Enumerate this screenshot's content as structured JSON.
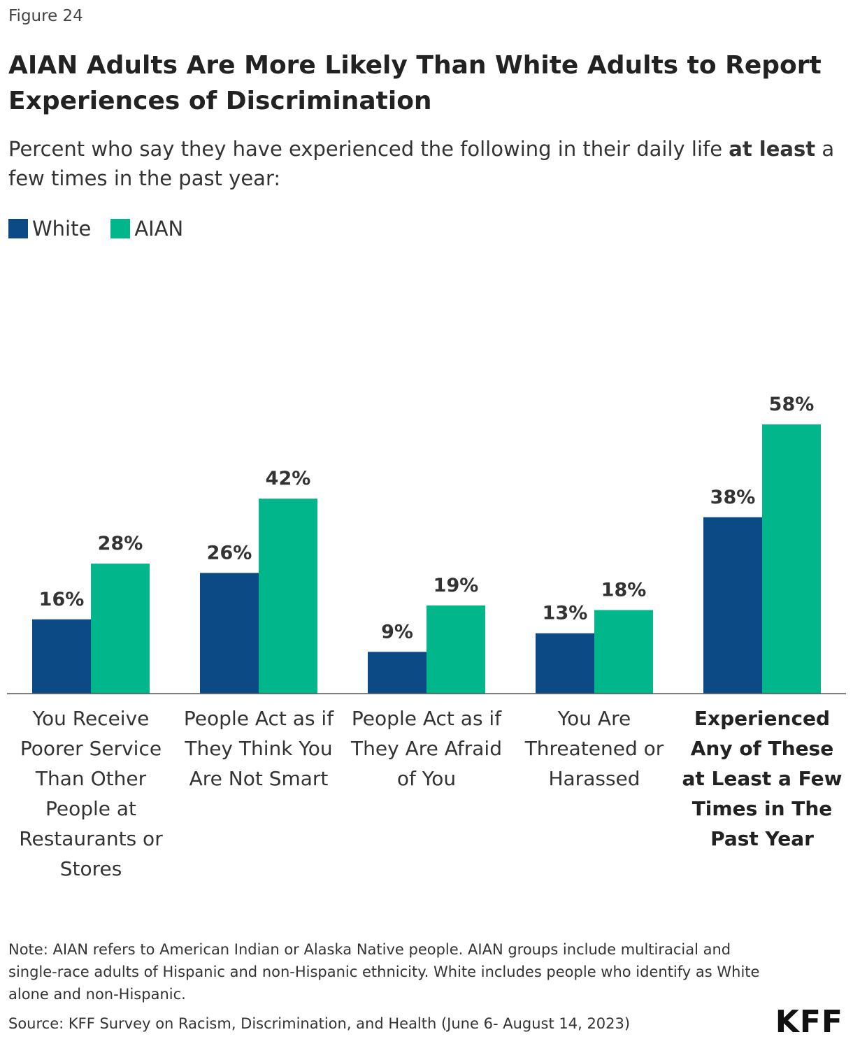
{
  "figure_label": "Figure 24",
  "chart_data": {
    "type": "bar",
    "title": "AIAN Adults Are More Likely Than White Adults to Report Experiences of Discrimination",
    "subtitle": [
      "Percent who say they have experienced the following in their daily life ",
      "at least",
      " a few times in the past year:"
    ],
    "categories": [
      "You Receive Poorer Service Than Other People at Restaurants or Stores",
      "People Act as if They Think You Are Not Smart",
      "People Act as if They Are Afraid of You",
      "You Are Threatened or Harassed",
      "Experienced Any of These at Least a Few Times in The Past Year"
    ],
    "series": [
      {
        "name": "White",
        "color": "#0b4a85",
        "values": [
          16,
          26,
          9,
          13,
          38
        ],
        "value_labels": [
          "16%",
          "26%",
          "9%",
          "13%",
          "38%"
        ]
      },
      {
        "name": "AIAN",
        "color": "#00b68a",
        "values": [
          28,
          42,
          19,
          18,
          58
        ],
        "value_labels": [
          "28%",
          "42%",
          "19%",
          "18%",
          "58%"
        ]
      }
    ],
    "legend": "top-left",
    "note": "Note: AIAN refers to American Indian or Alaska Native people. AIAN groups include multiracial and single-race adults of Hispanic and non-Hispanic ethnicity. White includes people who identify as White alone and non-Hispanic.",
    "source": "Source: KFF Survey on Racism, Discrimination, and Health (June 6- August 14, 2023)"
  },
  "logo": "KFF"
}
